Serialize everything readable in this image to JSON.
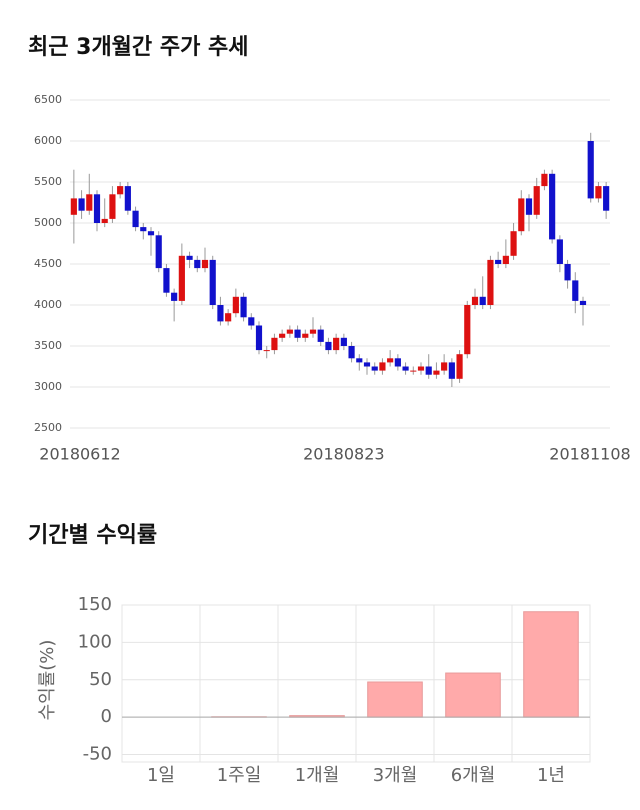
{
  "chart_data": [
    {
      "type": "candlestick",
      "title": "최근 3개월간 주가 추세",
      "categories": [
        "20180612",
        null,
        null,
        null,
        null,
        null,
        null,
        null,
        null,
        null,
        null,
        null,
        null,
        null,
        null,
        null,
        null,
        null,
        null,
        null,
        null,
        null,
        null,
        null,
        null,
        null,
        null,
        null,
        null,
        null,
        null,
        null,
        null,
        null,
        null,
        "20180823",
        null,
        null,
        null,
        null,
        null,
        null,
        null,
        null,
        null,
        null,
        null,
        null,
        null,
        null,
        null,
        null,
        null,
        null,
        null,
        null,
        null,
        null,
        null,
        null,
        null,
        null,
        null,
        null,
        null,
        null,
        null,
        null,
        null,
        "20181108"
      ],
      "open": [
        5100,
        5300,
        5150,
        5350,
        5000,
        5050,
        5350,
        5450,
        5150,
        4950,
        4900,
        4850,
        4450,
        4150,
        4050,
        4600,
        4550,
        4450,
        4550,
        4000,
        3800,
        3900,
        4100,
        3850,
        3750,
        3450,
        3450,
        3600,
        3650,
        3700,
        3600,
        3650,
        3700,
        3550,
        3450,
        3600,
        3500,
        3350,
        3300,
        3250,
        3200,
        3300,
        3350,
        3250,
        3200,
        3200,
        3250,
        3150,
        3200,
        3300,
        3100,
        3400,
        4000,
        4100,
        4000,
        4550,
        4500,
        4600,
        4900,
        5300,
        5100,
        5450,
        5600,
        4800,
        4500,
        4300,
        4050,
        6000,
        5300,
        5450
      ],
      "high": [
        5650,
        5400,
        5600,
        5400,
        5300,
        5450,
        5500,
        5500,
        5200,
        5000,
        4950,
        4900,
        4500,
        4200,
        4750,
        4650,
        4600,
        4700,
        4600,
        4100,
        3950,
        4200,
        4150,
        3900,
        3800,
        3500,
        3650,
        3700,
        3750,
        3750,
        3700,
        3850,
        3750,
        3600,
        3650,
        3650,
        3550,
        3400,
        3350,
        3300,
        3350,
        3450,
        3400,
        3300,
        3250,
        3300,
        3400,
        3300,
        3400,
        3350,
        3450,
        4050,
        4200,
        4350,
        4600,
        4650,
        4800,
        5000,
        5400,
        5350,
        5550,
        5650,
        5650,
        4850,
        4550,
        4400,
        4100,
        6100,
        5500,
        5500
      ],
      "low": [
        4750,
        5050,
        5100,
        4900,
        4950,
        5000,
        5300,
        5100,
        4900,
        4800,
        4600,
        4400,
        4100,
        3800,
        4000,
        4450,
        4400,
        4400,
        3950,
        3750,
        3750,
        3850,
        3800,
        3700,
        3400,
        3350,
        3400,
        3550,
        3600,
        3550,
        3550,
        3600,
        3500,
        3400,
        3400,
        3450,
        3300,
        3200,
        3150,
        3150,
        3150,
        3250,
        3200,
        3150,
        3150,
        3150,
        3100,
        3100,
        3150,
        3000,
        3050,
        3350,
        3950,
        3950,
        3950,
        4450,
        4450,
        4550,
        4850,
        4900,
        5050,
        5400,
        4750,
        4400,
        4200,
        3900,
        3750,
        5250,
        5250,
        5050
      ],
      "close": [
        5300,
        5150,
        5350,
        5000,
        5050,
        5350,
        5450,
        5150,
        4950,
        4900,
        4850,
        4450,
        4150,
        4050,
        4600,
        4550,
        4450,
        4550,
        4000,
        3800,
        3900,
        4100,
        3850,
        3750,
        3450,
        3450,
        3600,
        3650,
        3700,
        3600,
        3650,
        3700,
        3550,
        3450,
        3600,
        3500,
        3350,
        3300,
        3250,
        3200,
        3300,
        3350,
        3250,
        3200,
        3200,
        3250,
        3150,
        3200,
        3300,
        3100,
        3400,
        4000,
        4100,
        4000,
        4550,
        4500,
        4600,
        4900,
        5300,
        5100,
        5450,
        5600,
        4800,
        4500,
        4300,
        4050,
        4000,
        5300,
        5450,
        5150
      ],
      "up_color": "#dd1111",
      "down_color": "#1111cc",
      "ylim": [
        2500,
        6500
      ],
      "yticks": [
        2500,
        3000,
        3500,
        4000,
        4500,
        5000,
        5500,
        6000,
        6500
      ],
      "grid": true
    },
    {
      "type": "bar",
      "title": "기간별 수익률",
      "ylabel": "수익률(%)",
      "categories": [
        "1일",
        "1주일",
        "1개월",
        "3개월",
        "6개월",
        "1년"
      ],
      "values": [
        0,
        0.5,
        2,
        47,
        59,
        141
      ],
      "color": "#ffaaaa",
      "ylim": [
        -60,
        150
      ],
      "yticks": [
        -50,
        0,
        50,
        100,
        150
      ],
      "grid": true
    }
  ]
}
